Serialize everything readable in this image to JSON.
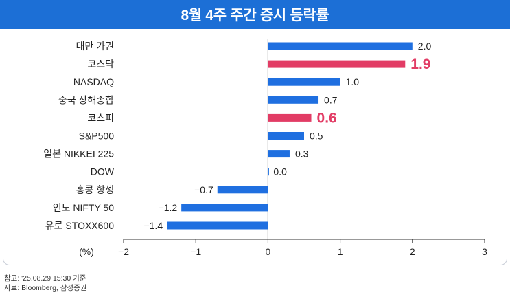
{
  "header": {
    "title": "8월 4주 주간 증시 등락률"
  },
  "chart_data": {
    "type": "bar",
    "orientation": "horizontal",
    "title": "8월 4주 주간 증시 등락률",
    "xlabel": "(%)",
    "xlim": [
      -2,
      3
    ],
    "xticks": [
      -2,
      -1,
      0,
      1,
      2,
      3
    ],
    "xtick_labels": [
      "−2",
      "−1",
      "0",
      "1",
      "2",
      "3"
    ],
    "categories": [
      "대만 가권",
      "코스닥",
      "NASDAQ",
      "중국 상해종합",
      "코스피",
      "S&P500",
      "일본 NIKKEI 225",
      "DOW",
      "홍콩 항셍",
      "인도 NIFTY 50",
      "유로 STOXX600"
    ],
    "values": [
      2.0,
      1.9,
      1.0,
      0.7,
      0.6,
      0.5,
      0.3,
      0.0,
      -0.7,
      -1.2,
      -1.4
    ],
    "value_labels": [
      "2.0",
      "1.9",
      "1.0",
      "0.7",
      "0.6",
      "0.5",
      "0.3",
      "0.0",
      "−0.7",
      "−1.2",
      "−1.4"
    ],
    "highlighted": [
      "코스닥",
      "코스피"
    ],
    "colors": {
      "default": "#1f6fe0",
      "highlight": "#e23c65",
      "axis": "#333333"
    },
    "grid": false,
    "legend": "none"
  },
  "footnotes": {
    "note1": "참고: '25.08.29 15:30 기준",
    "note2": "자료: Bloomberg, 삼성증권"
  }
}
